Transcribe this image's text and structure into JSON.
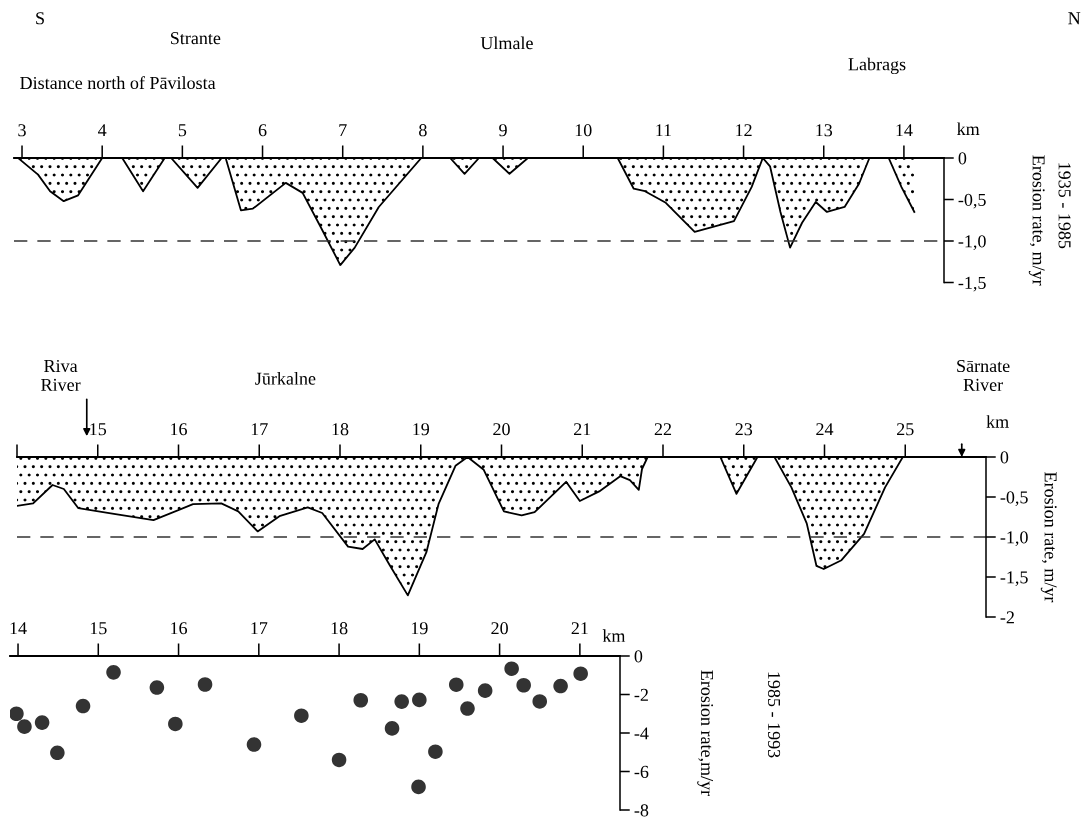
{
  "chart_data": [
    {
      "type": "area",
      "xlabel": "Distance north of Pāvilosta",
      "ylabel": "Erosion rate, m/yr",
      "xlim": [
        2.9,
        14.5
      ],
      "ylim": [
        -1.5,
        0
      ],
      "xticks": [
        3,
        4,
        5,
        6,
        7,
        8,
        9,
        10,
        11,
        12,
        13,
        14
      ],
      "yticks": [
        0,
        {
          "value": -0.5,
          "label": "-0,5"
        },
        {
          "value": -1.0,
          "label": "-1,0"
        },
        {
          "value": -1.5,
          "label": "-1,5"
        }
      ],
      "series": [
        {
          "color": "#000000",
          "x": [
            2.95,
            3.2,
            3.35,
            3.52,
            3.7,
            4.0,
            4.25,
            4.51,
            4.78,
            4.86,
            5.19,
            5.49,
            5.54,
            5.73,
            5.88,
            6.29,
            6.5,
            6.73,
            6.97,
            7.15,
            7.45,
            7.98,
            8.34,
            8.52,
            8.7,
            8.87,
            9.08,
            9.31,
            10.43,
            10.63,
            10.77,
            11.03,
            11.39,
            11.88,
            12.1,
            12.24,
            12.33,
            12.46,
            12.58,
            12.73,
            12.9,
            13.04,
            13.26,
            13.44,
            13.57,
            13.81,
            13.97,
            14.13
          ],
          "values": [
            0,
            -0.2,
            -0.4,
            -0.52,
            -0.45,
            0,
            0,
            -0.4,
            0,
            0,
            -0.36,
            0,
            0,
            -0.63,
            -0.61,
            -0.3,
            -0.42,
            -0.84,
            -1.29,
            -1.08,
            -0.59,
            0,
            0,
            -0.19,
            0,
            0,
            -0.19,
            0,
            0,
            -0.37,
            -0.4,
            -0.54,
            -0.89,
            -0.76,
            -0.35,
            0,
            -0.1,
            -0.65,
            -1.08,
            -0.78,
            -0.53,
            -0.65,
            -0.59,
            -0.31,
            0,
            0,
            -0.35,
            -0.65
          ]
        }
      ],
      "ref_lines": [
        {
          "axis": "y",
          "value": -1.0,
          "color": "#333333",
          "line_style": "dashed"
        }
      ],
      "annotations": [
        "S",
        "N",
        "Strante",
        "Ulmale",
        "Labrags",
        "km",
        "1935 - 1985"
      ]
    },
    {
      "type": "area",
      "ylabel": "Erosion rate, m/yr",
      "xlim": [
        14,
        26
      ],
      "ylim": [
        -2,
        0
      ],
      "xticks": [
        {
          "value": 14,
          "label": null
        },
        15,
        16,
        17,
        18,
        19,
        20,
        21,
        22,
        23,
        24,
        25
      ],
      "yticks": [
        0,
        {
          "value": -0.5,
          "label": "-0,5"
        },
        {
          "value": -1.0,
          "label": "-1,0"
        },
        {
          "value": -1.5,
          "label": "-1,5"
        },
        -2
      ],
      "series": [
        {
          "color": "#000000",
          "x": [
            14.0,
            14.2,
            14.44,
            14.58,
            14.76,
            15.2,
            15.69,
            16.18,
            16.53,
            16.74,
            16.98,
            17.25,
            17.6,
            17.78,
            18.1,
            18.28,
            18.43,
            18.62,
            18.84,
            19.07,
            19.22,
            19.43,
            19.58,
            19.78,
            20.03,
            20.25,
            20.41,
            20.8,
            20.97,
            21.21,
            21.47,
            21.59,
            21.7,
            21.74,
            21.81,
            22.71,
            22.91,
            23.17,
            23.38,
            23.59,
            23.78,
            23.9,
            23.99,
            24.21,
            24.49,
            24.75,
            24.97
          ],
          "values": [
            -0.61,
            -0.58,
            -0.35,
            -0.4,
            -0.64,
            -0.71,
            -0.79,
            -0.59,
            -0.58,
            -0.68,
            -0.93,
            -0.74,
            -0.63,
            -0.7,
            -1.12,
            -1.15,
            -1.03,
            -1.36,
            -1.73,
            -1.19,
            -0.59,
            -0.11,
            0,
            -0.16,
            -0.68,
            -0.73,
            -0.69,
            -0.31,
            -0.55,
            -0.43,
            -0.24,
            -0.29,
            -0.41,
            -0.15,
            0,
            0,
            -0.46,
            0,
            0,
            -0.38,
            -0.83,
            -1.36,
            -1.4,
            -1.29,
            -0.96,
            -0.38,
            0
          ]
        }
      ],
      "ref_lines": [
        {
          "axis": "y",
          "value": -1.0,
          "color": "#333333",
          "line_style": "dashed"
        }
      ],
      "annotations": [
        "Jūrkalne",
        "km",
        "Riva\nRiver",
        "Sārnate\nRiver"
      ]
    },
    {
      "type": "scatter",
      "ylabel": "Erosion rate,m/yr",
      "marker": "circle",
      "xlim": [
        13.9,
        21.5
      ],
      "ylim": [
        -8,
        0
      ],
      "xticks": [
        14,
        15,
        16,
        17,
        18,
        19,
        20,
        21
      ],
      "yticks": [
        0,
        -2,
        -4,
        -6,
        -8
      ],
      "series": [
        {
          "color": "#333333",
          "x": [
            13.98,
            14.08,
            14.3,
            14.49,
            14.81,
            15.19,
            15.73,
            15.96,
            16.33,
            16.94,
            17.53,
            18.0,
            18.27,
            18.66,
            18.78,
            19.0,
            19.2,
            18.99,
            19.46,
            19.6,
            19.82,
            20.15,
            20.3,
            20.5,
            20.76,
            21.01
          ],
          "values": [
            -3.0,
            -3.67,
            -3.46,
            -5.03,
            -2.6,
            -0.85,
            -1.64,
            -3.53,
            -1.48,
            -4.6,
            -3.1,
            -5.4,
            -2.3,
            -3.76,
            -2.37,
            -2.28,
            -4.97,
            -6.8,
            -1.49,
            -2.73,
            -1.8,
            -0.66,
            -1.52,
            -2.36,
            -1.56,
            -0.92
          ]
        }
      ],
      "annotations": [
        "km",
        "1985 - 1993"
      ]
    }
  ]
}
